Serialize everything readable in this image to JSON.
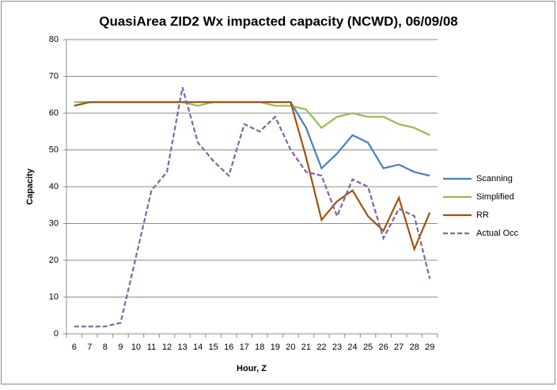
{
  "chart_data": {
    "type": "line",
    "title": "QuasiArea ZID2 Wx impacted capacity (NCWD), 06/09/08",
    "x_label": "Hour, Z",
    "y_label": "Capacity",
    "categories": [
      "6",
      "7",
      "8",
      "9",
      "10",
      "11",
      "12",
      "13",
      "14",
      "15",
      "16",
      "17",
      "18",
      "19",
      "20",
      "21",
      "22",
      "23",
      "24",
      "25",
      "26",
      "27",
      "28",
      "29"
    ],
    "series": [
      {
        "name": "Scanning",
        "color": "#4a7ebb",
        "values": [
          62,
          63,
          63,
          63,
          63,
          63,
          63,
          63,
          63,
          63,
          63,
          63,
          63,
          63,
          63,
          56,
          45,
          49,
          54,
          52,
          45,
          46,
          44,
          43
        ]
      },
      {
        "name": "Simplified",
        "color": "#98b954",
        "values": [
          63,
          63,
          63,
          63,
          63,
          63,
          63,
          63,
          62,
          63,
          63,
          63,
          63,
          62,
          62,
          61,
          56,
          59,
          60,
          59,
          59,
          57,
          56,
          54
        ]
      },
      {
        "name": "RR",
        "color": "#a0520f",
        "values": [
          62,
          63,
          63,
          63,
          63,
          63,
          63,
          63,
          63,
          63,
          63,
          63,
          63,
          63,
          63,
          48,
          31,
          36,
          39,
          32,
          28,
          37,
          23,
          33
        ]
      },
      {
        "name": "Actual Occ",
        "color": "#8064a2",
        "dashed": true,
        "values": [
          2,
          2,
          2,
          3,
          21,
          39,
          44,
          67,
          52,
          47,
          43,
          57,
          55,
          59,
          50,
          44,
          43,
          32,
          42,
          40,
          26,
          34,
          32,
          15
        ]
      }
    ],
    "ylim": [
      0,
      80
    ],
    "yticks": [
      0,
      10,
      20,
      30,
      40,
      50,
      60,
      70,
      80
    ],
    "grid": true,
    "legend": "right"
  }
}
